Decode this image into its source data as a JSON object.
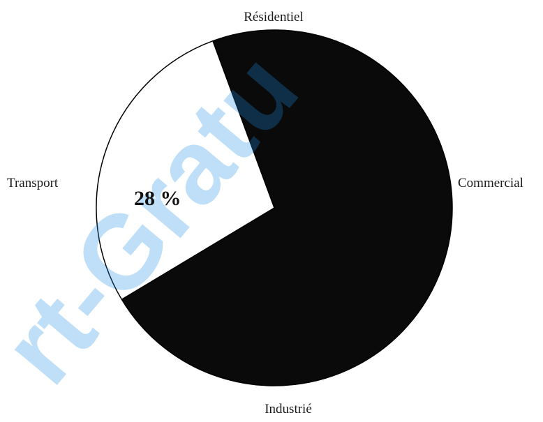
{
  "chart_data": {
    "type": "pie",
    "categories": [
      "Résidentiel",
      "Commercial",
      "Industrié",
      "Transport"
    ],
    "values": [
      null,
      null,
      null,
      28
    ],
    "data_labels": [
      "",
      "",
      "",
      "28 %"
    ],
    "title": "",
    "legend": "none",
    "colors": {
      "dark_slices": "#0a0a0a",
      "transport_slice": "#ffffff",
      "outline": "#000000"
    }
  },
  "watermark": {
    "text": "rt-Gratu",
    "color": "#1e90e8"
  }
}
